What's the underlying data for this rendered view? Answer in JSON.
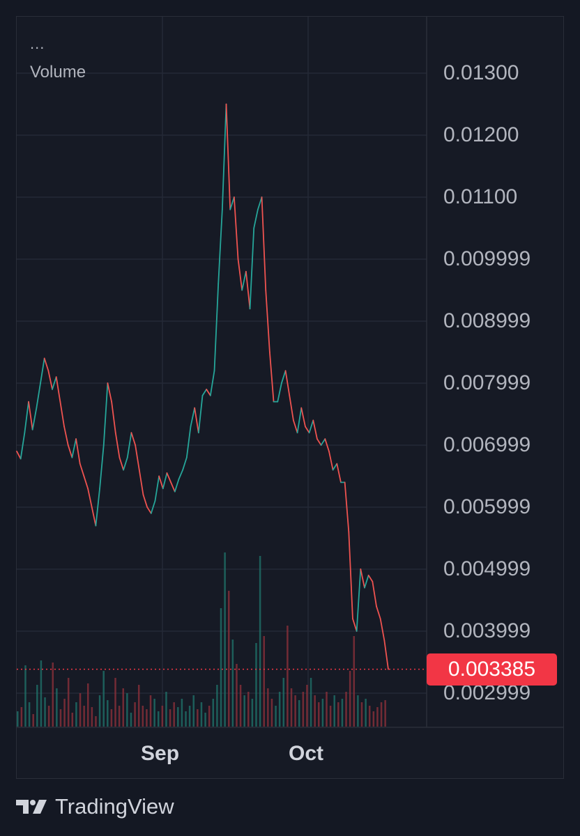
{
  "header": {
    "menu_glyph": "...",
    "indicator_label": "Volume"
  },
  "chart_data": {
    "type": "line",
    "xlabel": "",
    "ylabel": "",
    "x_ticks": [
      "Sep",
      "Oct"
    ],
    "y_ticks": [
      "0.01300",
      "0.01200",
      "0.01100",
      "0.009999",
      "0.008999",
      "0.007999",
      "0.006999",
      "0.005999",
      "0.004999",
      "0.003999",
      "0.002999"
    ],
    "ylim": [
      0.00265,
      0.0136
    ],
    "grid": true,
    "last_price": "0.003385",
    "up_color": "#26a69a",
    "down_color": "#ef5350",
    "price_series": [
      0.0069,
      0.00678,
      0.0072,
      0.0077,
      0.00725,
      0.0076,
      0.008,
      0.0084,
      0.0082,
      0.0079,
      0.0081,
      0.0077,
      0.0073,
      0.007,
      0.0068,
      0.0071,
      0.0067,
      0.0065,
      0.0063,
      0.006,
      0.0057,
      0.0063,
      0.007,
      0.008,
      0.0077,
      0.0072,
      0.0068,
      0.0066,
      0.0068,
      0.0072,
      0.007,
      0.0066,
      0.0062,
      0.006,
      0.0059,
      0.0061,
      0.0065,
      0.0063,
      0.00655,
      0.0064,
      0.00625,
      0.00645,
      0.0066,
      0.0068,
      0.0073,
      0.0076,
      0.0072,
      0.0078,
      0.0079,
      0.0078,
      0.0082,
      0.0096,
      0.0108,
      0.0125,
      0.0108,
      0.011,
      0.01,
      0.0095,
      0.0098,
      0.0092,
      0.0105,
      0.0108,
      0.011,
      0.0095,
      0.0085,
      0.0077,
      0.0077,
      0.008,
      0.0082,
      0.0078,
      0.0074,
      0.0072,
      0.0076,
      0.0073,
      0.0072,
      0.0074,
      0.0071,
      0.007,
      0.0071,
      0.0069,
      0.0066,
      0.0067,
      0.0064,
      0.0064,
      0.0056,
      0.0042,
      0.004,
      0.005,
      0.0047,
      0.0049,
      0.0048,
      0.0044,
      0.0042,
      0.00385,
      0.003385
    ],
    "volume_series": [
      22,
      28,
      88,
      35,
      18,
      60,
      95,
      42,
      30,
      92,
      55,
      25,
      40,
      70,
      20,
      35,
      48,
      30,
      62,
      28,
      15,
      45,
      80,
      38,
      25,
      70,
      30,
      55,
      48,
      20,
      35,
      60,
      30,
      25,
      45,
      40,
      22,
      30,
      50,
      25,
      35,
      28,
      40,
      22,
      30,
      45,
      25,
      35,
      20,
      30,
      40,
      60,
      170,
      250,
      195,
      125,
      90,
      60,
      45,
      50,
      40,
      120,
      245,
      130,
      55,
      40,
      30,
      50,
      70,
      145,
      55,
      45,
      38,
      50,
      60,
      70,
      45,
      35,
      40,
      50,
      30,
      45,
      35,
      40,
      50,
      80,
      130,
      45,
      35,
      40,
      30,
      22,
      28,
      35,
      38
    ]
  },
  "branding": {
    "name": "TradingView"
  }
}
